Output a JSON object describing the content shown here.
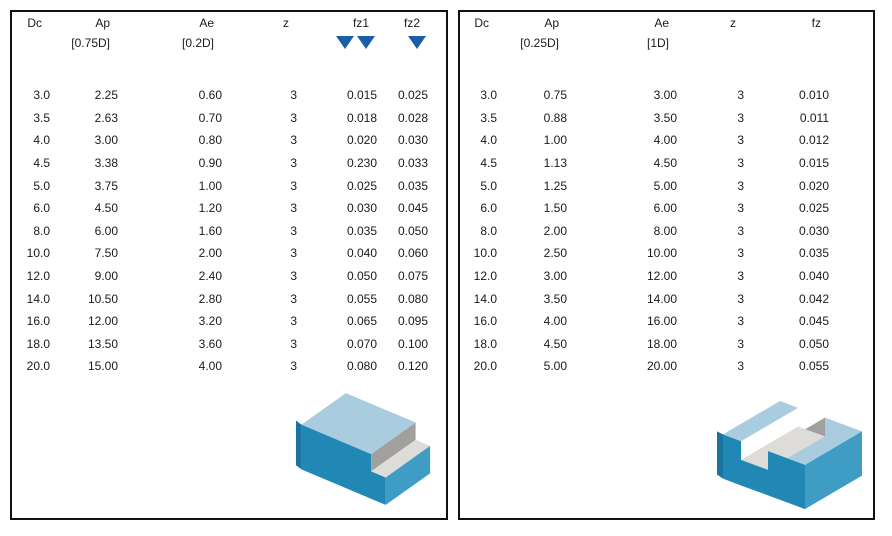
{
  "colors": {
    "marker_blue": "#1b5ea8",
    "panel_border": "#111111",
    "block_top": "#a9cdde",
    "block_front_dark": "#2187b5",
    "block_front_light": "#3f9dc5",
    "block_side_shadow": "#19759f",
    "block_wall_gray": "#a2a09e",
    "block_floor_gray": "#dedcd9"
  },
  "tables": [
    {
      "id": "shoulder-milling",
      "headers": [
        "Dc",
        "Ap",
        "Ae",
        "z",
        "fz1",
        "fz2"
      ],
      "units": [
        "",
        "[0.75D]",
        "[0.2D]",
        "",
        "",
        ""
      ],
      "markers": {
        "fz1_triangles": 2,
        "fz2_triangles": 1
      },
      "illustration": "shoulder-step-block",
      "rows": [
        [
          "3.0",
          "2.25",
          "0.60",
          "3",
          "0.015",
          "0.025"
        ],
        [
          "3.5",
          "2.63",
          "0.70",
          "3",
          "0.018",
          "0.028"
        ],
        [
          "4.0",
          "3.00",
          "0.80",
          "3",
          "0.020",
          "0.030"
        ],
        [
          "4.5",
          "3.38",
          "0.90",
          "3",
          "0.230",
          "0.033"
        ],
        [
          "5.0",
          "3.75",
          "1.00",
          "3",
          "0.025",
          "0.035"
        ],
        [
          "6.0",
          "4.50",
          "1.20",
          "3",
          "0.030",
          "0.045"
        ],
        [
          "8.0",
          "6.00",
          "1.60",
          "3",
          "0.035",
          "0.050"
        ],
        [
          "10.0",
          "7.50",
          "2.00",
          "3",
          "0.040",
          "0.060"
        ],
        [
          "12.0",
          "9.00",
          "2.40",
          "3",
          "0.050",
          "0.075"
        ],
        [
          "14.0",
          "10.50",
          "2.80",
          "3",
          "0.055",
          "0.080"
        ],
        [
          "16.0",
          "12.00",
          "3.20",
          "3",
          "0.065",
          "0.095"
        ],
        [
          "18.0",
          "13.50",
          "3.60",
          "3",
          "0.070",
          "0.100"
        ],
        [
          "20.0",
          "15.00",
          "4.00",
          "3",
          "0.080",
          "0.120"
        ]
      ]
    },
    {
      "id": "slot-milling",
      "headers": [
        "Dc",
        "Ap",
        "Ae",
        "z",
        "fz"
      ],
      "units": [
        "",
        "[0.25D]",
        "[1D]",
        "",
        ""
      ],
      "illustration": "slot-block",
      "rows": [
        [
          "3.0",
          "0.75",
          "3.00",
          "3",
          "0.010"
        ],
        [
          "3.5",
          "0.88",
          "3.50",
          "3",
          "0.011"
        ],
        [
          "4.0",
          "1.00",
          "4.00",
          "3",
          "0.012"
        ],
        [
          "4.5",
          "1.13",
          "4.50",
          "3",
          "0.015"
        ],
        [
          "5.0",
          "1.25",
          "5.00",
          "3",
          "0.020"
        ],
        [
          "6.0",
          "1.50",
          "6.00",
          "3",
          "0.025"
        ],
        [
          "8.0",
          "2.00",
          "8.00",
          "3",
          "0.030"
        ],
        [
          "10.0",
          "2.50",
          "10.00",
          "3",
          "0.035"
        ],
        [
          "12.0",
          "3.00",
          "12.00",
          "3",
          "0.040"
        ],
        [
          "14.0",
          "3.50",
          "14.00",
          "3",
          "0.042"
        ],
        [
          "16.0",
          "4.00",
          "16.00",
          "3",
          "0.045"
        ],
        [
          "18.0",
          "4.50",
          "18.00",
          "3",
          "0.050"
        ],
        [
          "20.0",
          "5.00",
          "20.00",
          "3",
          "0.055"
        ]
      ]
    }
  ]
}
